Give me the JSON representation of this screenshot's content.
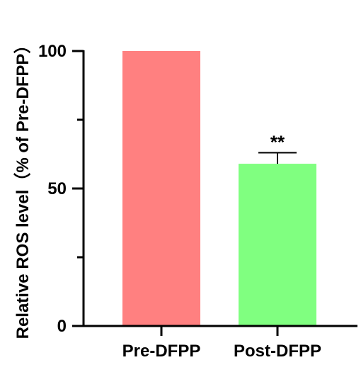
{
  "chart_data": {
    "type": "bar",
    "title": "",
    "xlabel": "",
    "ylabel": "Relative ROS level（% of Pre-DFPP）",
    "categories": [
      "Pre-DFPP",
      "Post-DFPP"
    ],
    "values": [
      100,
      59
    ],
    "errors": [
      0,
      4
    ],
    "colors": [
      "#FF8080",
      "#80FF80"
    ],
    "annotations": [
      "",
      "**"
    ],
    "ylim": [
      0,
      100
    ],
    "yticks": [
      0,
      50,
      100
    ],
    "y_minor_ticks": [
      25,
      75
    ],
    "grid": false,
    "legend": "none"
  }
}
